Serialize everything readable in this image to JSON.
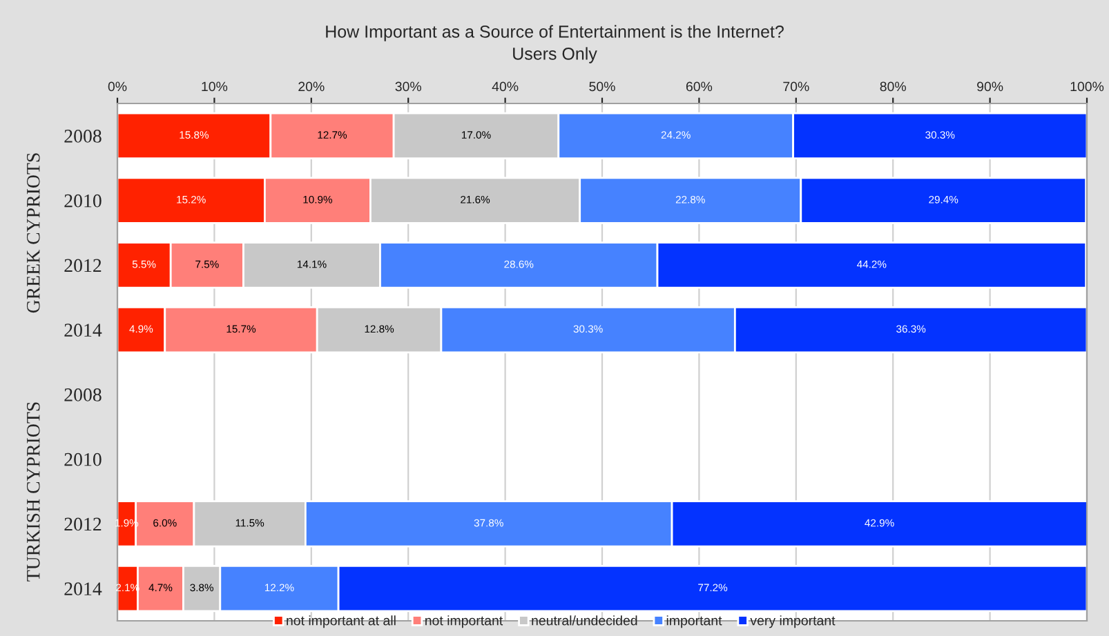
{
  "chart_data": {
    "type": "bar",
    "orientation": "horizontal",
    "stacked": true,
    "title": "How Important as a Source of Entertainment is the Internet?",
    "subtitle": "Users Only",
    "categories": [
      "2008",
      "2010",
      "2012",
      "2014",
      "2008",
      "2010",
      "2012",
      "2014"
    ],
    "series": [
      {
        "name": "not important at all",
        "color": "#ff2200",
        "values": [
          15.8,
          15.2,
          5.5,
          4.9,
          null,
          null,
          1.9,
          2.1
        ],
        "value_labels": [
          "15.8%",
          "15.2%",
          "5.5%",
          "4.9%",
          null,
          null,
          "1.9%",
          "2.1%"
        ]
      },
      {
        "name": "not important",
        "color": "#ff7f79",
        "values": [
          12.7,
          10.9,
          7.5,
          15.7,
          null,
          null,
          6.0,
          4.7
        ],
        "value_labels": [
          "12.7%",
          "10.9%",
          "7.5%",
          "15.7%",
          null,
          null,
          "6.0%",
          "4.7%"
        ]
      },
      {
        "name": "neutral/undecided",
        "color": "#c8c8c8",
        "values": [
          17.0,
          21.6,
          14.1,
          12.8,
          null,
          null,
          11.5,
          3.8
        ],
        "value_labels": [
          "17.0%",
          "21.6%",
          "14.1%",
          "12.8%",
          null,
          null,
          "11.5%",
          "3.8%"
        ]
      },
      {
        "name": "important",
        "color": "#4682ff",
        "values": [
          24.2,
          22.8,
          28.6,
          30.3,
          null,
          null,
          37.8,
          12.2
        ],
        "value_labels": [
          "24.2%",
          "22.8%",
          "28.6%",
          "30.3%",
          null,
          null,
          "37.8%",
          "12.2%"
        ]
      },
      {
        "name": "very important",
        "color": "#0433ff",
        "values": [
          30.3,
          29.4,
          44.2,
          36.3,
          null,
          null,
          42.9,
          77.2
        ],
        "value_labels": [
          "30.3%",
          "29.4%",
          "44.2%",
          "36.3%",
          null,
          null,
          "42.9%",
          "77.2%"
        ]
      }
    ],
    "xlim": [
      0,
      100
    ],
    "xticks": [
      {
        "value": 0,
        "label": "0%"
      },
      {
        "value": 10,
        "label": "10%"
      },
      {
        "value": 20,
        "label": "20%"
      },
      {
        "value": 30,
        "label": "30%"
      },
      {
        "value": 40,
        "label": "40%"
      },
      {
        "value": 50,
        "label": "50%"
      },
      {
        "value": 60,
        "label": "60%"
      },
      {
        "value": 70,
        "label": "70%"
      },
      {
        "value": 80,
        "label": "80%"
      },
      {
        "value": 90,
        "label": "90%"
      },
      {
        "value": 100,
        "label": "100%"
      }
    ],
    "grid": "x",
    "legend": "bottom",
    "annotations": [
      "GREEK CYPRIOTS",
      "TURKISH CYPRIOTS"
    ]
  }
}
